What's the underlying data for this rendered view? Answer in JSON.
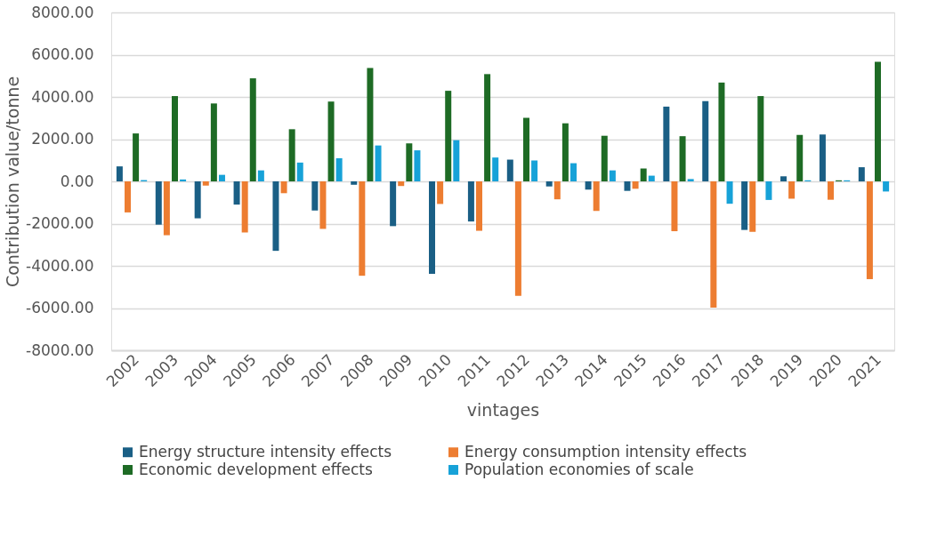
{
  "chart_data": {
    "type": "bar",
    "xlabel": "vintages",
    "ylabel": "Contribution value/tonne",
    "categories": [
      "2002",
      "2003",
      "2004",
      "2005",
      "2006",
      "2007",
      "2008",
      "2009",
      "2010",
      "2011",
      "2012",
      "2013",
      "2014",
      "2015",
      "2016",
      "2017",
      "2018",
      "2019",
      "2020",
      "2021"
    ],
    "series": [
      {
        "name": "Energy structure intensity effects",
        "color": "#1a5f85",
        "values": [
          710,
          -2050,
          -1750,
          -1100,
          -3290,
          -1380,
          -160,
          -2120,
          -4380,
          -1900,
          1030,
          -240,
          -390,
          -450,
          3540,
          3800,
          -2300,
          240,
          2220,
          670
        ]
      },
      {
        "name": "Energy consumption intensity effects",
        "color": "#ed7d31",
        "values": [
          -1470,
          -2550,
          -200,
          -2420,
          -560,
          -2250,
          -4470,
          -220,
          -1070,
          -2340,
          -5420,
          -850,
          -1400,
          -350,
          -2360,
          -5980,
          -2390,
          -820,
          -870,
          -4630
        ]
      },
      {
        "name": "Economic development effects",
        "color": "#1e6b25",
        "values": [
          2270,
          4040,
          3690,
          4880,
          2470,
          3780,
          5370,
          1800,
          4290,
          5080,
          3010,
          2750,
          2160,
          610,
          2140,
          4680,
          4040,
          2200,
          50,
          5660
        ]
      },
      {
        "name": "Population economies of scale",
        "color": "#17a2d8",
        "values": [
          60,
          90,
          310,
          520,
          890,
          1090,
          1700,
          1470,
          1950,
          1130,
          990,
          860,
          520,
          270,
          110,
          -1060,
          -880,
          50,
          50,
          -480
        ]
      }
    ],
    "ylim": [
      -8000,
      8000
    ],
    "yticks": [
      {
        "value": -8000,
        "label": "-8000.00"
      },
      {
        "value": -6000,
        "label": "-6000.00"
      },
      {
        "value": -4000,
        "label": "-4000.00"
      },
      {
        "value": -2000,
        "label": "-2000.00"
      },
      {
        "value": 0,
        "label": "0.00"
      },
      {
        "value": 2000,
        "label": "2000.00"
      },
      {
        "value": 4000,
        "label": "4000.00"
      },
      {
        "value": 6000,
        "label": "6000.00"
      },
      {
        "value": 8000,
        "label": "8000.00"
      }
    ],
    "grid": "y",
    "legend": "bottom"
  }
}
